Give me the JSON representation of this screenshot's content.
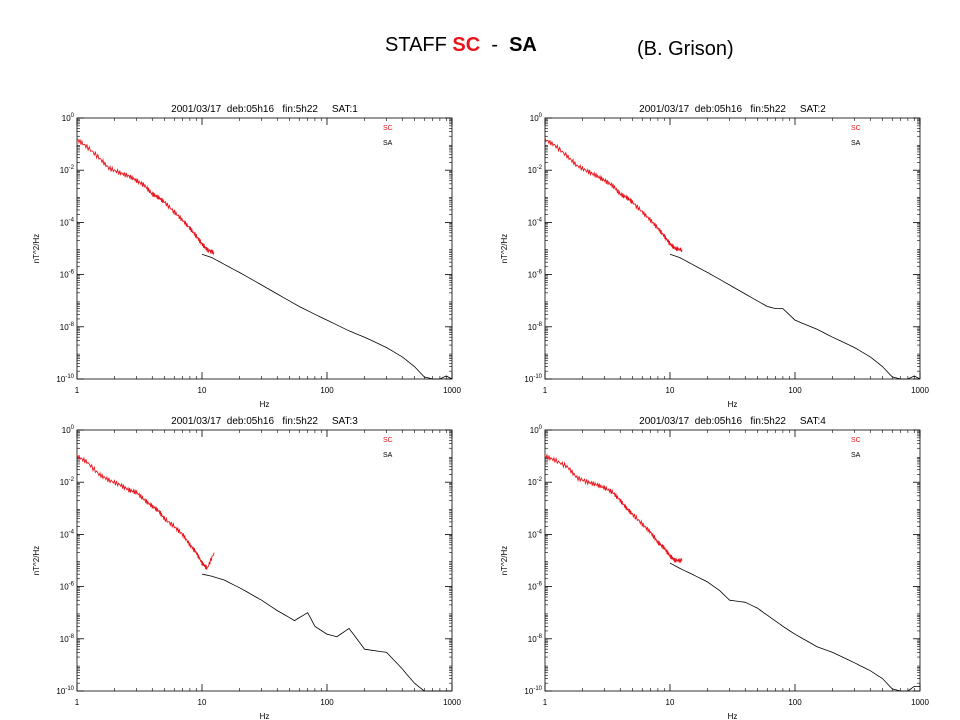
{
  "header": {
    "title_prefix": "STAFF ",
    "title_sc": "SC",
    "title_sep": "  -  ",
    "title_sa": "SA",
    "author": "(B. Grison)"
  },
  "colors": {
    "sc": "#e8141b",
    "sa": "#000000",
    "axes": "#000000"
  },
  "chart_data": [
    {
      "type": "line",
      "title": "2001/03/17  deb:05h16   fin:5h22     SAT:1",
      "xlabel": "Hz",
      "ylabel": "nT^2/Hz",
      "xscale": "log",
      "yscale": "log",
      "xlim": [
        1,
        1000
      ],
      "ylim": [
        1e-10,
        1
      ],
      "xticks": [
        {
          "v": 1,
          "label": "1"
        },
        {
          "v": 10,
          "label": "10"
        },
        {
          "v": 100,
          "label": "100"
        },
        {
          "v": 1000,
          "label": "1000"
        }
      ],
      "yticks": [
        {
          "v": 1,
          "label": "10^0"
        },
        {
          "v": 0.01,
          "label": "10^-2"
        },
        {
          "v": 0.0001,
          "label": "10^-4"
        },
        {
          "v": 1e-06,
          "label": "10^-6"
        },
        {
          "v": 1e-08,
          "label": "10^-8"
        },
        {
          "v": 1e-10,
          "label": "10^-10"
        }
      ],
      "legend_position": "top-right",
      "series": [
        {
          "name": "SC",
          "color": "#e8141b",
          "x": [
            1,
            1.2,
            1.5,
            1.8,
            2.2,
            2.6,
            3,
            3.5,
            4,
            4.5,
            5,
            6,
            7,
            8,
            9,
            10,
            11,
            12.5
          ],
          "y": [
            0.15,
            0.08,
            0.03,
            0.012,
            0.008,
            0.006,
            0.004,
            0.0025,
            0.0012,
            0.0009,
            0.0006,
            0.00025,
            0.00012,
            6e-05,
            3e-05,
            1.5e-05,
            9e-06,
            7e-06
          ]
        },
        {
          "name": "SA",
          "color": "#000000",
          "x": [
            10,
            12,
            15,
            20,
            30,
            40,
            60,
            80,
            100,
            150,
            200,
            300,
            400,
            500,
            600,
            700,
            800,
            900,
            1000
          ],
          "y": [
            6e-06,
            4.5e-06,
            2.5e-06,
            1.2e-06,
            4e-07,
            1.8e-07,
            6e-08,
            3e-08,
            1.8e-08,
            7e-09,
            4e-09,
            1.6e-09,
            7e-10,
            3e-10,
            1.2e-10,
            1e-10,
            1e-10,
            1.3e-10,
            1e-10
          ]
        }
      ]
    },
    {
      "type": "line",
      "title": "2001/03/17  deb:05h16   fin:5h22     SAT:2",
      "xlabel": "Hz",
      "ylabel": "nT^2/Hz",
      "xscale": "log",
      "yscale": "log",
      "xlim": [
        1,
        1000
      ],
      "ylim": [
        1e-10,
        1
      ],
      "xticks": [
        {
          "v": 1,
          "label": "1"
        },
        {
          "v": 10,
          "label": "10"
        },
        {
          "v": 100,
          "label": "100"
        },
        {
          "v": 1000,
          "label": "1000"
        }
      ],
      "yticks": [
        {
          "v": 1,
          "label": "10^0"
        },
        {
          "v": 0.01,
          "label": "10^-2"
        },
        {
          "v": 0.0001,
          "label": "10^-4"
        },
        {
          "v": 1e-06,
          "label": "10^-6"
        },
        {
          "v": 1e-08,
          "label": "10^-8"
        },
        {
          "v": 1e-10,
          "label": "10^-10"
        }
      ],
      "legend_position": "top-right",
      "series": [
        {
          "name": "SC",
          "color": "#e8141b",
          "x": [
            1,
            1.2,
            1.5,
            1.8,
            2.2,
            2.6,
            3,
            3.5,
            4,
            4.5,
            5,
            6,
            7,
            8,
            9,
            10,
            11,
            12.5
          ],
          "y": [
            0.15,
            0.09,
            0.035,
            0.015,
            0.009,
            0.006,
            0.004,
            0.0025,
            0.0012,
            0.0009,
            0.0006,
            0.00025,
            0.00012,
            6e-05,
            3e-05,
            1.5e-05,
            1e-05,
            9e-06
          ]
        },
        {
          "name": "SA",
          "color": "#000000",
          "x": [
            10,
            12,
            15,
            20,
            30,
            40,
            60,
            70,
            80,
            100,
            150,
            200,
            300,
            400,
            500,
            600,
            700,
            800,
            900,
            1000
          ],
          "y": [
            6e-06,
            4.5e-06,
            2.5e-06,
            1.2e-06,
            4e-07,
            1.8e-07,
            6e-08,
            5e-08,
            5e-08,
            1.8e-08,
            8e-09,
            4e-09,
            1.6e-09,
            7e-10,
            3e-10,
            1.2e-10,
            1e-10,
            1e-10,
            1.3e-10,
            1e-10
          ]
        }
      ]
    },
    {
      "type": "line",
      "title": "2001/03/17  deb:05h16   fin:5h22     SAT:3",
      "xlabel": "Hz",
      "ylabel": "nT^2/Hz",
      "xscale": "log",
      "yscale": "log",
      "xlim": [
        1,
        1000
      ],
      "ylim": [
        1e-10,
        1
      ],
      "xticks": [
        {
          "v": 1,
          "label": "1"
        },
        {
          "v": 10,
          "label": "10"
        },
        {
          "v": 100,
          "label": "100"
        },
        {
          "v": 1000,
          "label": "1000"
        }
      ],
      "yticks": [
        {
          "v": 1,
          "label": "10^0"
        },
        {
          "v": 0.01,
          "label": "10^-2"
        },
        {
          "v": 0.0001,
          "label": "10^-4"
        },
        {
          "v": 1e-06,
          "label": "10^-6"
        },
        {
          "v": 1e-08,
          "label": "10^-8"
        },
        {
          "v": 1e-10,
          "label": "10^-10"
        }
      ],
      "legend_position": "top-right",
      "series": [
        {
          "name": "SC",
          "color": "#e8141b",
          "x": [
            1,
            1.2,
            1.5,
            1.8,
            2.2,
            2.6,
            3,
            3.5,
            4,
            4.5,
            5,
            6,
            7,
            8,
            9,
            10,
            11,
            12.5
          ],
          "y": [
            0.1,
            0.06,
            0.02,
            0.012,
            0.008,
            0.005,
            0.004,
            0.002,
            0.0012,
            0.0008,
            0.0004,
            0.0002,
            0.0001,
            4e-05,
            2e-05,
            8e-06,
            5e-06,
            2e-05
          ]
        },
        {
          "name": "SA",
          "color": "#000000",
          "x": [
            10,
            12,
            15,
            20,
            30,
            40,
            55,
            70,
            80,
            100,
            120,
            150,
            200,
            300,
            400,
            500,
            600,
            700,
            800,
            900,
            1000
          ],
          "y": [
            3e-06,
            2.5e-06,
            1.8e-06,
            9e-07,
            3e-07,
            1.2e-07,
            5e-08,
            1e-07,
            3e-08,
            1.5e-08,
            1.2e-08,
            2.5e-08,
            4e-09,
            3e-09,
            7e-10,
            2e-10,
            1e-10,
            1e-10,
            1e-10,
            1e-10,
            1e-10
          ]
        }
      ]
    },
    {
      "type": "line",
      "title": "2001/03/17  deb:05h16   fin:5h22     SAT:4",
      "xlabel": "Hz",
      "ylabel": "nT^2/Hz",
      "xscale": "log",
      "yscale": "log",
      "xlim": [
        1,
        1000
      ],
      "ylim": [
        1e-10,
        1
      ],
      "xticks": [
        {
          "v": 1,
          "label": "1"
        },
        {
          "v": 10,
          "label": "10"
        },
        {
          "v": 100,
          "label": "100"
        },
        {
          "v": 1000,
          "label": "1000"
        }
      ],
      "yticks": [
        {
          "v": 1,
          "label": "10^0"
        },
        {
          "v": 0.01,
          "label": "10^-2"
        },
        {
          "v": 0.0001,
          "label": "10^-4"
        },
        {
          "v": 1e-06,
          "label": "10^-6"
        },
        {
          "v": 1e-08,
          "label": "10^-8"
        },
        {
          "v": 1e-10,
          "label": "10^-10"
        }
      ],
      "legend_position": "top-right",
      "series": [
        {
          "name": "SC",
          "color": "#e8141b",
          "x": [
            1,
            1.2,
            1.5,
            1.8,
            2.2,
            2.6,
            3,
            3.5,
            4,
            4.5,
            5,
            6,
            7,
            8,
            9,
            10,
            11,
            12.5
          ],
          "y": [
            0.1,
            0.07,
            0.04,
            0.015,
            0.01,
            0.008,
            0.006,
            0.004,
            0.002,
            0.001,
            0.0006,
            0.00025,
            0.00012,
            5e-05,
            3e-05,
            1.5e-05,
            1e-05,
            1e-05
          ]
        },
        {
          "name": "SA",
          "color": "#000000",
          "x": [
            10,
            12,
            15,
            20,
            25,
            30,
            40,
            50,
            60,
            80,
            100,
            150,
            200,
            300,
            400,
            500,
            600,
            700,
            800,
            900,
            1000
          ],
          "y": [
            8e-06,
            5e-06,
            3e-06,
            1.5e-06,
            7e-07,
            3e-07,
            2.5e-07,
            1.5e-07,
            8e-08,
            3e-08,
            1.5e-08,
            5e-09,
            3e-09,
            1.2e-09,
            6e-10,
            3e-10,
            1.2e-10,
            1e-10,
            1e-10,
            1.5e-10,
            1.5e-10
          ]
        }
      ]
    }
  ]
}
